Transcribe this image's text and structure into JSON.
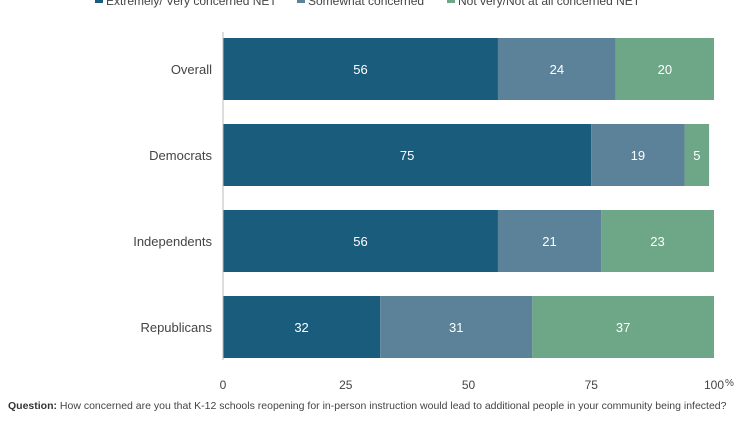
{
  "chart_data": {
    "type": "bar",
    "orientation": "horizontal",
    "stacked": true,
    "categories": [
      "Overall",
      "Democrats",
      "Independents",
      "Republicans"
    ],
    "series": [
      {
        "name": "Extremely/ Very concerned NET",
        "color": "#195c7c",
        "values": [
          56,
          75,
          56,
          32
        ]
      },
      {
        "name": "Somewhat concerned",
        "color": "#5c8299",
        "values": [
          24,
          19,
          21,
          31
        ]
      },
      {
        "name": "Not very/Not at all concerned NET",
        "color": "#6ea688",
        "values": [
          20,
          5,
          23,
          37
        ]
      }
    ],
    "xlim": [
      0,
      100
    ],
    "x_ticks": [
      0,
      25,
      50,
      75,
      100
    ],
    "x_tick_labels": [
      "0",
      "25",
      "50",
      "75",
      "100"
    ],
    "x_unit": "%",
    "legend_position": "top",
    "grid": false
  },
  "footnote": {
    "label": "Question:",
    "text": " How concerned are you that K-12 schools reopening for in-person instruction would lead to additional people in your community being infected?"
  }
}
